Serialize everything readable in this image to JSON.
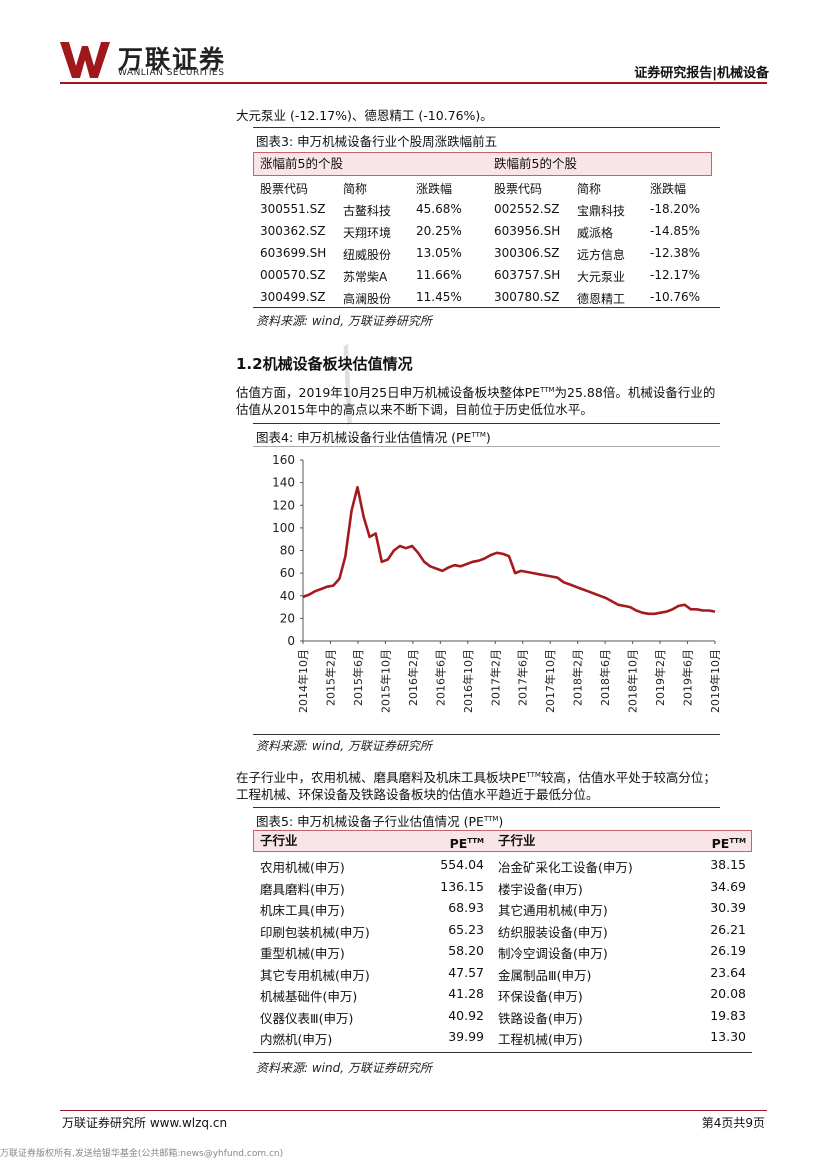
{
  "header": {
    "logo_cn": "万联证券",
    "logo_en": "WANLIAN SECURITIES",
    "right": "证券研究报告|机械设备"
  },
  "intro_line": "大元泵业 (-12.17%)、德恩精工 (-10.76%)。",
  "fig3": {
    "title": "图表3: 申万机械设备行业个股周涨跌幅前五",
    "left_head": "涨幅前5的个股",
    "right_head": "跌幅前5的个股",
    "cols": [
      "股票代码",
      "简称",
      "涨跌幅",
      "股票代码",
      "简称",
      "涨跌幅"
    ],
    "rows": [
      [
        "300551.SZ",
        "古鳌科技",
        "45.68%",
        "002552.SZ",
        "宝鼎科技",
        "-18.20%"
      ],
      [
        "300362.SZ",
        "天翔环境",
        "20.25%",
        "603956.SH",
        "威派格",
        "-14.85%"
      ],
      [
        "603699.SH",
        "纽威股份",
        "13.05%",
        "300306.SZ",
        "远方信息",
        "-12.38%"
      ],
      [
        "000570.SZ",
        "苏常柴A",
        "11.66%",
        "603757.SH",
        "大元泵业",
        "-12.17%"
      ],
      [
        "300499.SZ",
        "高澜股份",
        "11.45%",
        "300780.SZ",
        "德恩精工",
        "-10.76%"
      ]
    ],
    "source": "资料来源: wind, 万联证券研究所"
  },
  "section": {
    "title": "1.2机械设备板块估值情况",
    "para1": "估值方面，2019年10月25日申万机械设备板块整体PE",
    "para1_sup": "TTM",
    "para1_end": "为25.88倍。机械设备行业的",
    "para2": "估值从2015年中的高点以来不断下调，目前位于历史低位水平。"
  },
  "fig4": {
    "title": "图表4: 申万机械设备行业估值情况 (PE",
    "title_sup": "TTM",
    "title_end": ")",
    "source": "资料来源: wind, 万联证券研究所"
  },
  "chart_data": {
    "type": "line",
    "title": "",
    "xlabel": "",
    "ylabel": "",
    "ylim": [
      0,
      160
    ],
    "yticks": [
      0,
      20,
      40,
      60,
      80,
      100,
      120,
      140,
      160
    ],
    "xticks": [
      "2014年10月",
      "2015年2月",
      "2015年6月",
      "2015年10月",
      "2016年2月",
      "2016年6月",
      "2016年10月",
      "2017年2月",
      "2017年6月",
      "2017年10月",
      "2018年2月",
      "2018年6月",
      "2018年10月",
      "2019年2月",
      "2019年6月",
      "2019年10月"
    ],
    "line_color": "#a31a1f",
    "series": [
      {
        "values": [
          39,
          41,
          44,
          46,
          48,
          49,
          55,
          75,
          115,
          136,
          110,
          92,
          95,
          70,
          72,
          80,
          84,
          82,
          84,
          78,
          70,
          66,
          64,
          62,
          65,
          67,
          66,
          68,
          70,
          71,
          73,
          76,
          78,
          77,
          75,
          60,
          62,
          61,
          60,
          59,
          58,
          57,
          56,
          52,
          50,
          48,
          46,
          44,
          42,
          40,
          38,
          35,
          32,
          31,
          30,
          27,
          25,
          24,
          24,
          25,
          26,
          28,
          31,
          32,
          28,
          28,
          27,
          27,
          26
        ]
      }
    ]
  },
  "para_sub1": "在子行业中，农用机械、磨具磨料及机床工具板块PE",
  "para_sub1_sup": "TTM",
  "para_sub1_end": "较高，估值水平处于较高分位；",
  "para_sub2": "工程机械、环保设备及铁路设备板块的估值水平趋近于最低分位。",
  "fig5": {
    "title": "图表5: 申万机械设备子行业估值情况 (PE",
    "title_sup": "TTM",
    "title_end": ")",
    "head_sub": "子行业",
    "head_pe": "PE",
    "head_sup": "TTM",
    "rows": [
      [
        "农用机械(申万)",
        "554.04",
        "冶金矿采化工设备(申万)",
        "38.15"
      ],
      [
        "磨具磨料(申万)",
        "136.15",
        "楼宇设备(申万)",
        "34.69"
      ],
      [
        "机床工具(申万)",
        "68.93",
        "其它通用机械(申万)",
        "30.39"
      ],
      [
        "印刷包装机械(申万)",
        "65.23",
        "纺织服装设备(申万)",
        "26.21"
      ],
      [
        "重型机械(申万)",
        "58.20",
        "制冷空调设备(申万)",
        "26.19"
      ],
      [
        "其它专用机械(申万)",
        "47.57",
        "金属制品Ⅲ(申万)",
        "23.64"
      ],
      [
        "机械基础件(申万)",
        "41.28",
        "环保设备(申万)",
        "20.08"
      ],
      [
        "仪器仪表Ⅲ(申万)",
        "40.92",
        "铁路设备(申万)",
        "19.83"
      ],
      [
        "内燃机(申万)",
        "39.99",
        "工程机械(申万)",
        "13.30"
      ]
    ],
    "source": "资料来源: wind, 万联证券研究所"
  },
  "footer": {
    "left": "万联证券研究所 www.wlzq.cn",
    "right": "第4页共9页",
    "disclaimer": "万联证券版权所有,发送给银华基金(公共邮箱:news@yhfund.com.cn)"
  }
}
